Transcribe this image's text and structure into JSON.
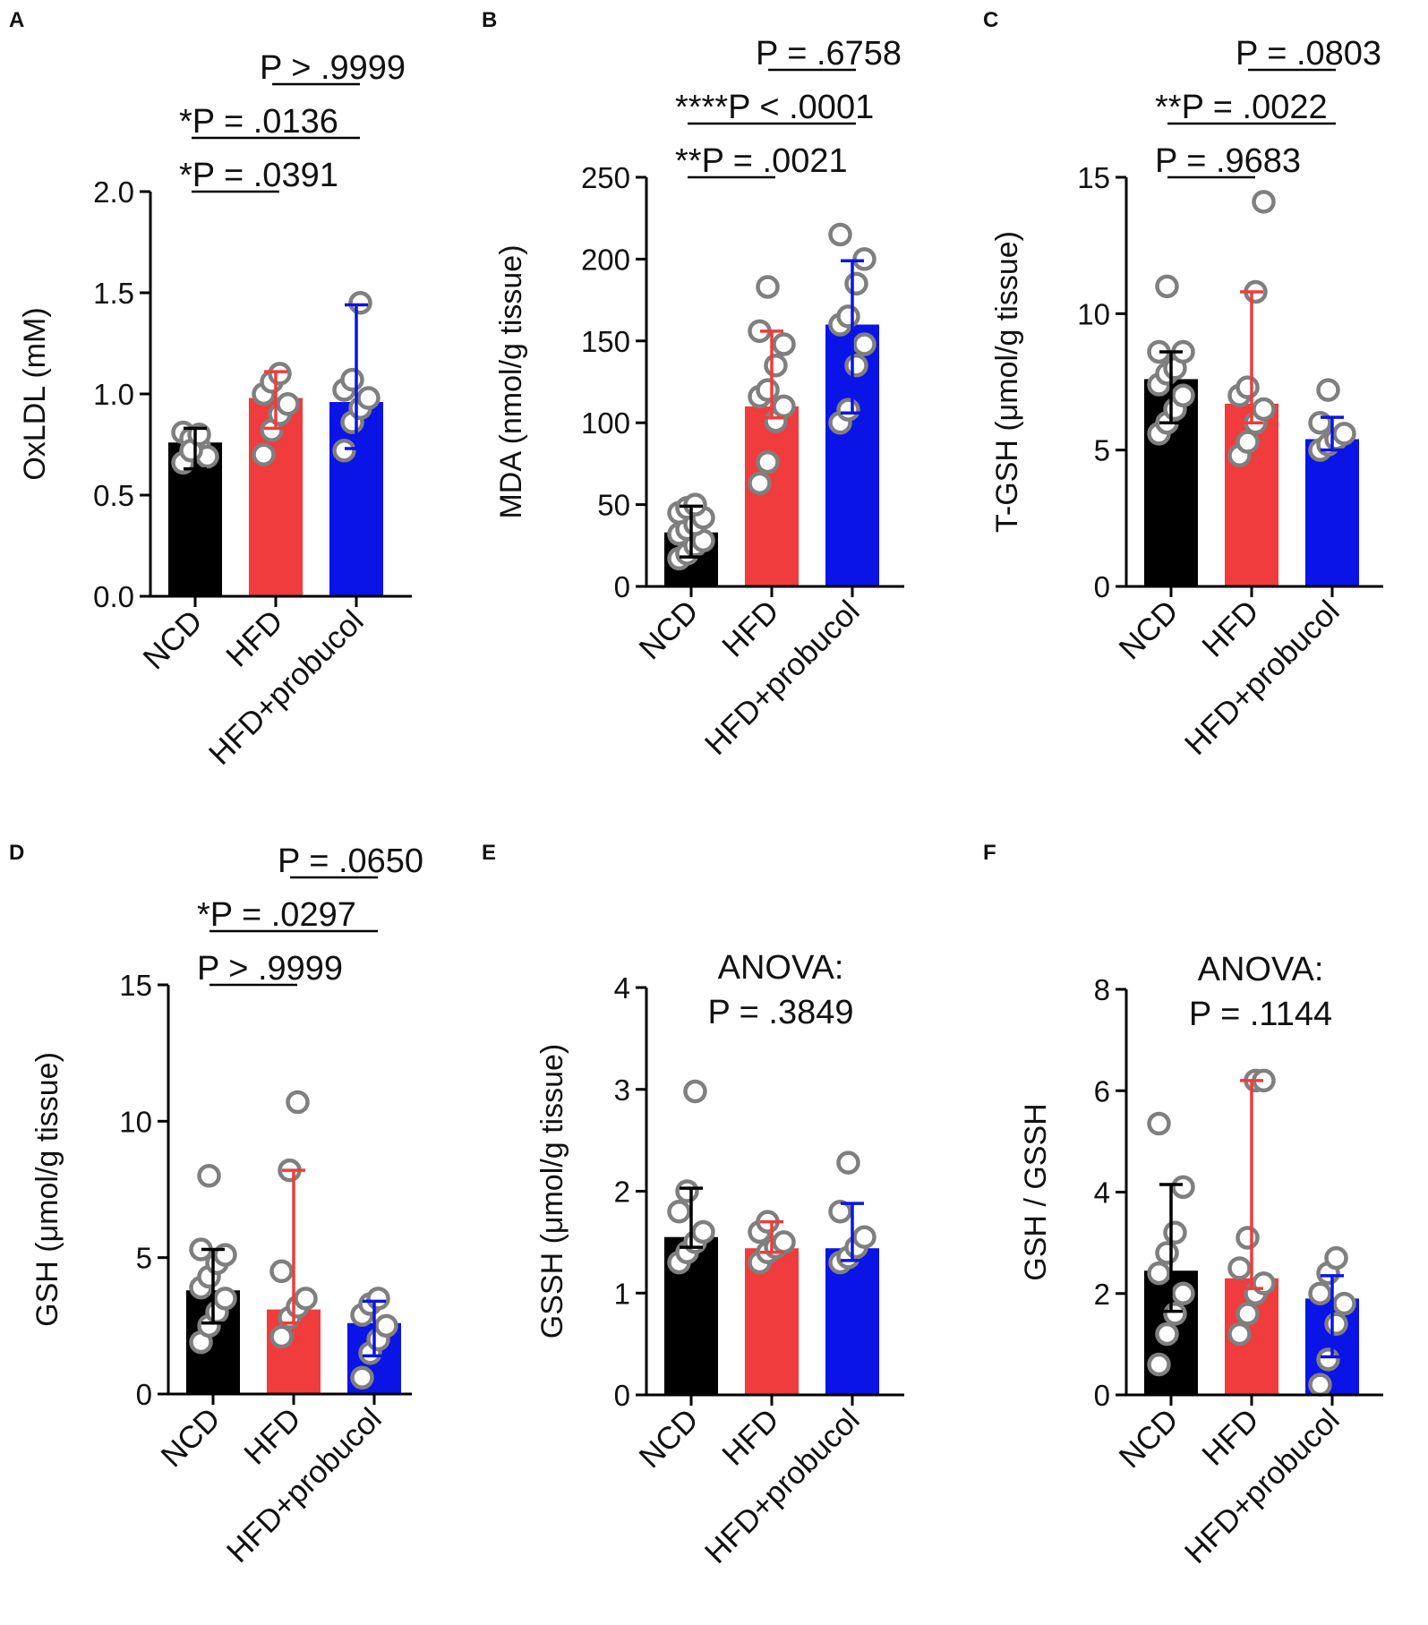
{
  "figure": {
    "groups": [
      "NCD",
      "HFD",
      "HFD+probucol"
    ],
    "colors": {
      "NCD": "#000000",
      "HFD": "#f03c3c",
      "HFD+probucol": "#0a14e6",
      "dot_edge": "#7f7f7f",
      "axis": "#000000"
    }
  },
  "chart_data": [
    {
      "panel": "A",
      "type": "bar",
      "ylabel": "OxLDL (mM)",
      "ylim": [
        0,
        2.0
      ],
      "yticks": [
        "0.0",
        "0.5",
        "1.0",
        "1.5",
        "2.0"
      ],
      "ytick_values": [
        0,
        0.5,
        1.0,
        1.5,
        2.0
      ],
      "categories": [
        "NCD",
        "HFD",
        "HFD+probucol"
      ],
      "values": [
        0.76,
        0.98,
        0.96
      ],
      "error_low": [
        0.63,
        0.83,
        0.73
      ],
      "error_high": [
        0.83,
        1.11,
        1.44
      ],
      "points": [
        [
          0.81,
          0.78,
          0.74,
          0.69,
          0.66,
          0.72,
          0.8
        ],
        [
          0.7,
          0.82,
          0.9,
          0.95,
          1.0,
          1.06,
          1.1
        ],
        [
          0.72,
          0.86,
          0.93,
          0.98,
          1.02,
          1.07,
          1.45
        ]
      ],
      "annotations": [
        {
          "text": "*P = .0391",
          "from": 0,
          "to": 1,
          "level": 1
        },
        {
          "text": "*P = .0136",
          "from": 0,
          "to": 2,
          "level": 2
        },
        {
          "text": "P > .9999",
          "from": 1,
          "to": 2,
          "level": 3
        }
      ]
    },
    {
      "panel": "B",
      "type": "bar",
      "ylabel": "MDA (nmol/g tissue)",
      "ylim": [
        0,
        250
      ],
      "yticks": [
        "0",
        "50",
        "100",
        "150",
        "200",
        "250"
      ],
      "ytick_values": [
        0,
        50,
        100,
        150,
        200,
        250
      ],
      "categories": [
        "NCD",
        "HFD",
        "HFD+probucol"
      ],
      "values": [
        33,
        110,
        160
      ],
      "error_low": [
        18,
        103,
        106
      ],
      "error_high": [
        49,
        156,
        199
      ],
      "points": [
        [
          17,
          20,
          25,
          28,
          32,
          35,
          38,
          42,
          45,
          48,
          50
        ],
        [
          63,
          76,
          101,
          110,
          116,
          120,
          135,
          148,
          156,
          183
        ],
        [
          100,
          108,
          135,
          148,
          160,
          165,
          185,
          200,
          215
        ]
      ],
      "annotations": [
        {
          "text": "**P = .0021",
          "from": 0,
          "to": 1,
          "level": 1
        },
        {
          "text": "****P < .0001",
          "from": 0,
          "to": 2,
          "level": 2
        },
        {
          "text": "P = .6758",
          "from": 1,
          "to": 2,
          "level": 3
        }
      ]
    },
    {
      "panel": "C",
      "type": "bar",
      "ylabel": "T-GSH (μmol/g tissue)",
      "ylim": [
        0,
        15
      ],
      "yticks": [
        "0",
        "5",
        "10",
        "15"
      ],
      "ytick_values": [
        0,
        5,
        10,
        15
      ],
      "categories": [
        "NCD",
        "HFD",
        "HFD+probucol"
      ],
      "values": [
        7.6,
        6.7,
        5.4
      ],
      "error_low": [
        6.0,
        6.0,
        5.0
      ],
      "error_high": [
        8.6,
        10.8,
        6.2
      ],
      "points": [
        [
          5.6,
          6.0,
          6.5,
          7.0,
          7.4,
          7.8,
          8.0,
          8.6,
          8.6,
          11.0
        ],
        [
          4.8,
          5.3,
          6.0,
          6.5,
          7.0,
          7.3,
          10.8,
          14.1
        ],
        [
          5.0,
          5.2,
          5.4,
          5.6,
          6.0,
          7.2
        ]
      ],
      "annotations": [
        {
          "text": "P = .9683",
          "from": 0,
          "to": 1,
          "level": 1
        },
        {
          "text": "**P = .0022",
          "from": 0,
          "to": 2,
          "level": 2
        },
        {
          "text": "P = .0803",
          "from": 1,
          "to": 2,
          "level": 3
        }
      ]
    },
    {
      "panel": "D",
      "type": "bar",
      "ylabel": "GSH (μmol/g tissue)",
      "ylim": [
        0,
        15
      ],
      "yticks": [
        "0",
        "5",
        "10",
        "15"
      ],
      "ytick_values": [
        0,
        5,
        10,
        15
      ],
      "categories": [
        "NCD",
        "HFD",
        "HFD+probucol"
      ],
      "values": [
        3.8,
        3.1,
        2.6
      ],
      "error_low": [
        2.6,
        2.6,
        1.4
      ],
      "error_high": [
        5.3,
        8.2,
        3.4
      ],
      "points": [
        [
          1.9,
          2.5,
          3.0,
          3.5,
          3.9,
          4.3,
          4.8,
          5.1,
          5.3,
          8.0
        ],
        [
          2.1,
          2.8,
          3.2,
          3.5,
          4.5,
          8.2,
          10.7
        ],
        [
          0.6,
          1.5,
          2.0,
          2.5,
          2.9,
          3.3,
          3.5
        ]
      ],
      "annotations": [
        {
          "text": "P > .9999",
          "from": 0,
          "to": 1,
          "level": 1
        },
        {
          "text": "*P = .0297",
          "from": 0,
          "to": 2,
          "level": 2
        },
        {
          "text": "P = .0650",
          "from": 1,
          "to": 2,
          "level": 3
        }
      ]
    },
    {
      "panel": "E",
      "type": "bar",
      "ylabel": "GSSH (μmol/g tissue)",
      "ylim": [
        0,
        4
      ],
      "yticks": [
        "0",
        "1",
        "2",
        "3",
        "4"
      ],
      "ytick_values": [
        0,
        1,
        2,
        3,
        4
      ],
      "categories": [
        "NCD",
        "HFD",
        "HFD+probucol"
      ],
      "values": [
        1.55,
        1.44,
        1.44
      ],
      "error_low": [
        1.45,
        1.4,
        1.32
      ],
      "error_high": [
        2.03,
        1.7,
        1.88
      ],
      "points": [
        [
          1.3,
          1.4,
          1.5,
          1.6,
          1.8,
          2.0,
          2.98
        ],
        [
          1.3,
          1.4,
          1.45,
          1.5,
          1.6,
          1.7
        ],
        [
          1.3,
          1.35,
          1.45,
          1.55,
          1.8,
          2.28
        ]
      ],
      "header": {
        "line1": "ANOVA:",
        "line2": "P = .3849"
      }
    },
    {
      "panel": "F",
      "type": "bar",
      "ylabel": "GSH / GSSH",
      "ylim": [
        0,
        8
      ],
      "yticks": [
        "0",
        "2",
        "4",
        "6",
        "8"
      ],
      "ytick_values": [
        0,
        2,
        4,
        6,
        8
      ],
      "categories": [
        "NCD",
        "HFD",
        "HFD+probucol"
      ],
      "values": [
        2.45,
        2.3,
        1.9
      ],
      "error_low": [
        1.65,
        2.1,
        0.75
      ],
      "error_high": [
        4.15,
        6.2,
        2.35
      ],
      "points": [
        [
          0.6,
          1.2,
          1.6,
          2.0,
          2.4,
          2.8,
          3.2,
          4.1,
          5.35
        ],
        [
          1.2,
          1.6,
          2.0,
          2.2,
          2.5,
          3.1,
          6.2,
          6.2
        ],
        [
          0.2,
          0.7,
          1.4,
          1.8,
          2.0,
          2.4,
          2.7
        ]
      ],
      "header": {
        "line1": "ANOVA:",
        "line2": "P = .1144"
      }
    }
  ]
}
